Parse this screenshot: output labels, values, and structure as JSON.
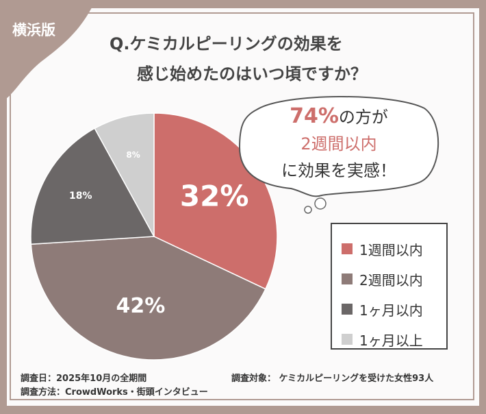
{
  "badge": "横浜版",
  "title": {
    "line1": "Q.ケミカルピーリングの効果を",
    "line2": "感じ始めたのはいつ頃ですか？"
  },
  "callout": {
    "pct": "74%",
    "line1_rest": "の方が",
    "line2": "2週間以内",
    "line3": "に効果を実感！"
  },
  "chart_data": {
    "type": "pie",
    "categories": [
      "1週間以内",
      "2週間以内",
      "1ヶ月以内",
      "1ヶ月以上"
    ],
    "values": [
      32,
      42,
      18,
      8
    ],
    "labels": [
      "32%",
      "42%",
      "18%",
      "8%"
    ],
    "colors": [
      "#cd6e6b",
      "#8e7b78",
      "#6b6767",
      "#cfcfcf"
    ],
    "start": "top",
    "direction": "clockwise",
    "legend": "right"
  },
  "footer": {
    "date": "調査日：2025年10月の全期間",
    "method": "調査方法：CrowdWorks・街頭インタビュー",
    "target": "調査対象： ケミカルピーリングを受けた女性93人"
  }
}
